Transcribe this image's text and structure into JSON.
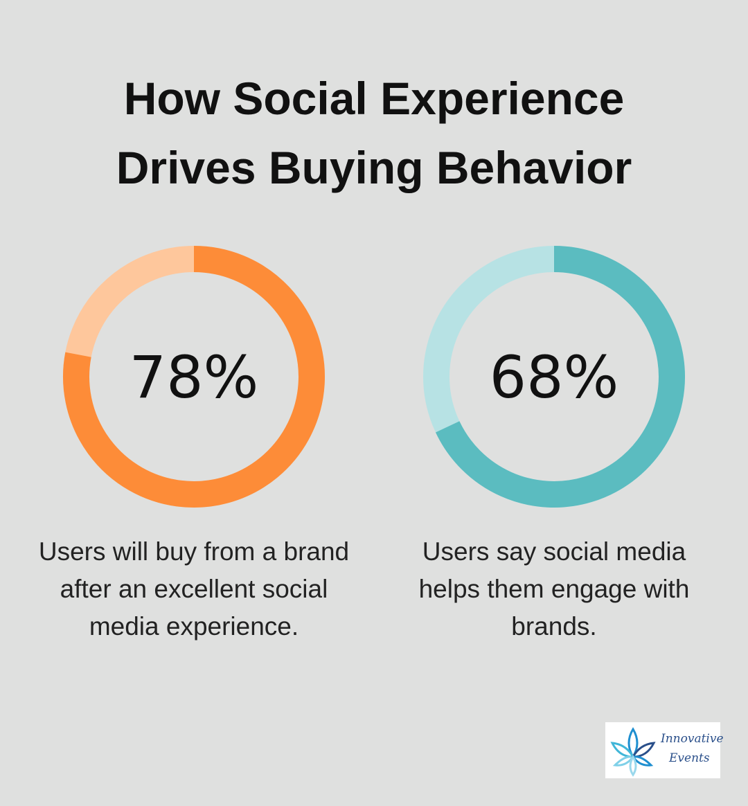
{
  "title": "How Social Experience Drives Buying Behavior",
  "chart_data": [
    {
      "type": "donut",
      "values": [
        78
      ],
      "value_labels": [
        "78%"
      ],
      "color": "#fd8c38",
      "track_color": "#fec79c",
      "caption": "Users will buy from a brand after an excellent social media experience."
    },
    {
      "type": "donut",
      "values": [
        68
      ],
      "value_labels": [
        "68%"
      ],
      "color": "#5bbcc0",
      "track_color": "#b7e2e4",
      "caption": "Users say social media helps them engage with brands."
    }
  ],
  "logo": {
    "lines": [
      "Innovative",
      "Events"
    ]
  }
}
